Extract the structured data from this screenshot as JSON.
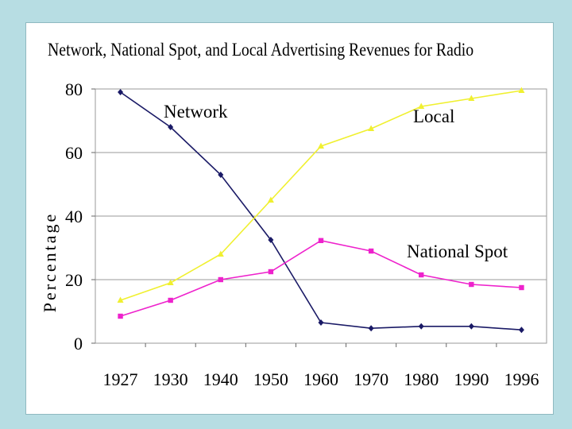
{
  "chart_data": {
    "type": "line",
    "title": "Network, National Spot, and Local Advertising Revenues for Radio",
    "xlabel": "",
    "ylabel": "Percentage",
    "ylim": [
      0,
      80
    ],
    "yticks": [
      0,
      20,
      40,
      60,
      80
    ],
    "categories": [
      "1927",
      "1930",
      "1940",
      "1950",
      "1960",
      "1970",
      "1980",
      "1990",
      "1996"
    ],
    "grid": true,
    "series": [
      {
        "name": "Network",
        "color": "#1a1a66",
        "marker": "diamond",
        "values": [
          79,
          68,
          53,
          32.5,
          6.5,
          4.7,
          5.3,
          5.3,
          4.2
        ]
      },
      {
        "name": "National Spot",
        "color": "#ee22cc",
        "marker": "square",
        "values": [
          8.5,
          13.5,
          20,
          22.5,
          32.3,
          29,
          21.5,
          18.5,
          17.5
        ]
      },
      {
        "name": "Local",
        "color": "#f0f030",
        "marker": "triangle",
        "values": [
          13.5,
          19,
          28,
          45,
          62,
          67.5,
          74.5,
          77,
          79.5
        ]
      }
    ]
  }
}
